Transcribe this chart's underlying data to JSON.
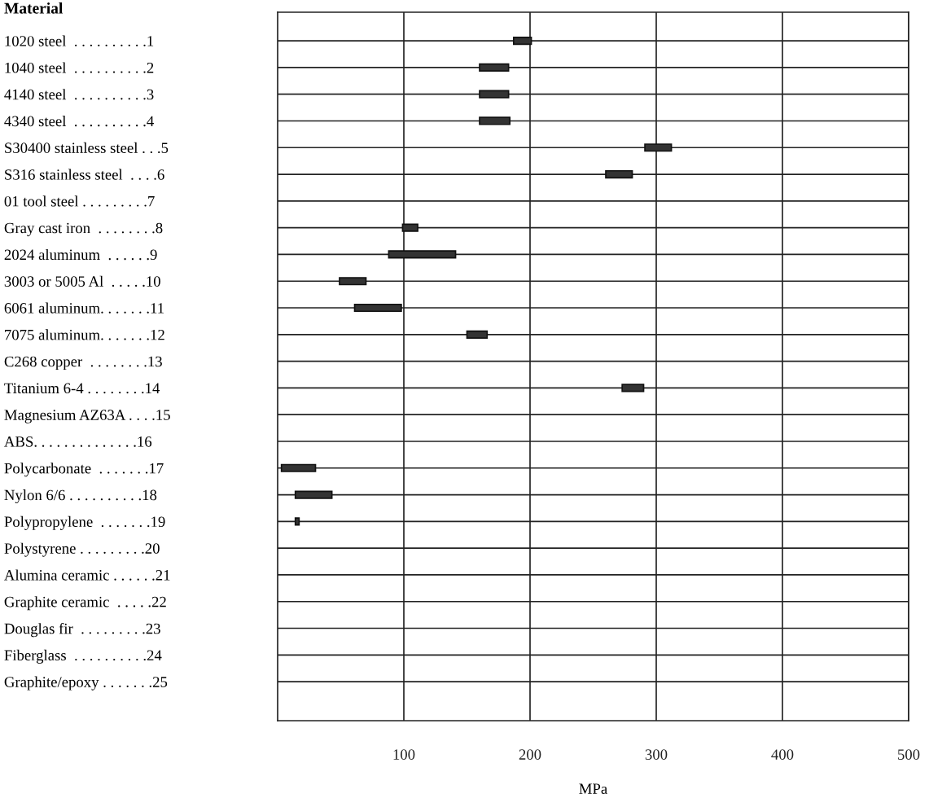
{
  "chart_data": {
    "type": "bar",
    "orientation": "horizontal",
    "title": "Material",
    "xlabel": "MPa",
    "categories": [
      "1020 steel  . . . . . . . . . .1",
      "1040 steel  . . . . . . . . . .2",
      "4140 steel  . . . . . . . . . .3",
      "4340 steel  . . . . . . . . . .4",
      "S30400 stainless steel . . .5",
      "S316 stainless steel  . . . .6",
      "01 tool steel . . . . . . . . .7",
      "Gray cast iron  . . . . . . . .8",
      "2024 aluminum  . . . . . .9",
      "3003 or 5005 Al  . . . . .10",
      "6061 aluminum. . . . . . .11",
      "7075 aluminum. . . . . . .12",
      "C268 copper  . . . . . . . .13",
      "Titanium 6-4 . . . . . . . .14",
      "Magnesium AZ63A . . . .15",
      "ABS. . . . . . . . . . . . . .16",
      "Polycarbonate  . . . . . . .17",
      "Nylon 6/6 . . . . . . . . . .18",
      "Polypropylene  . . . . . . .19",
      "Polystyrene . . . . . . . . .20",
      "Alumina ceramic . . . . . .21",
      "Graphite ceramic  . . . . .22",
      "Douglas fir  . . . . . . . . .23",
      "Fiberglass  . . . . . . . . . .24",
      "Graphite/epoxy . . . . . . .25"
    ],
    "base": [
      187,
      160,
      160,
      160,
      291,
      260,
      null,
      99,
      88,
      49,
      61,
      150,
      null,
      273,
      null,
      null,
      3,
      14,
      14,
      null,
      null,
      null,
      null,
      null,
      null
    ],
    "values": [
      14,
      23,
      23,
      24,
      21,
      21,
      null,
      12,
      53,
      21,
      37,
      16,
      null,
      17,
      null,
      null,
      27,
      29,
      3,
      null,
      null,
      null,
      null,
      null,
      null
    ],
    "color": "#333333",
    "xlim": [
      0,
      500
    ],
    "xticks": [
      100,
      200,
      300,
      400,
      500
    ],
    "grid": true
  }
}
